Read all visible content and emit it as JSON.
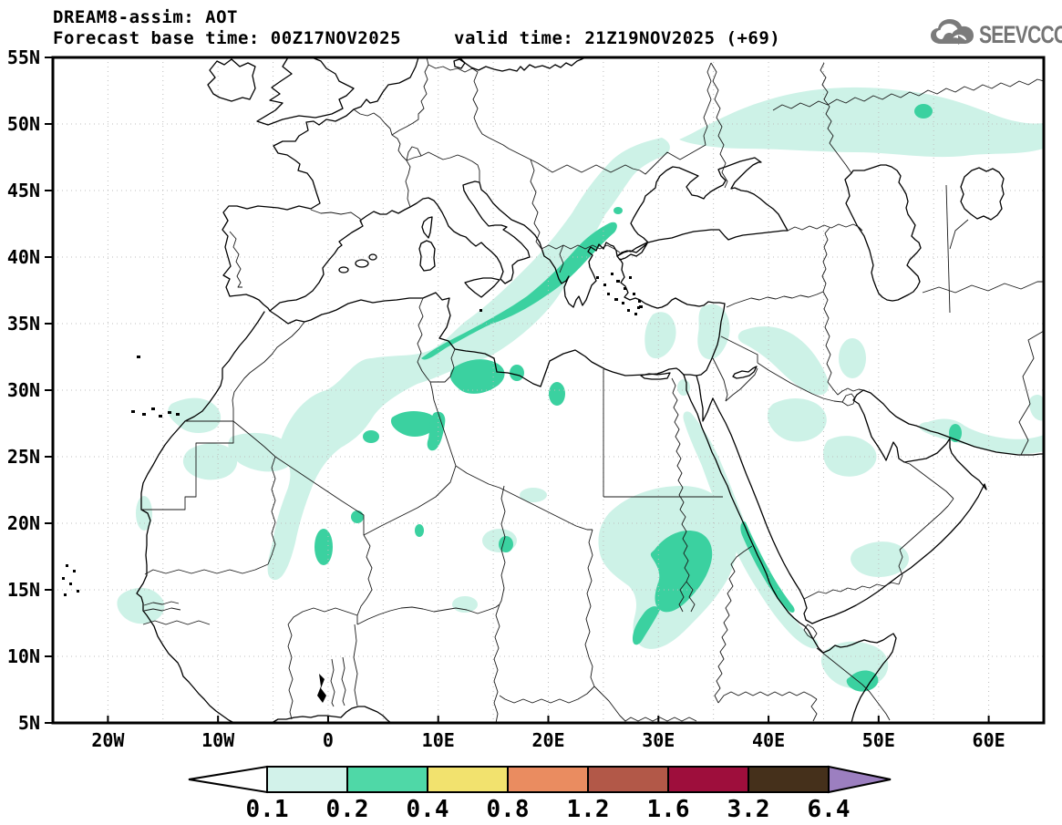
{
  "header": {
    "title": "DREAM8-assim: AOT",
    "forecast_base": "Forecast base time: 00Z17NOV2025",
    "valid_time": "valid time: 21Z19NOV2025 (+69)",
    "logo_text": "SEEVCCC"
  },
  "map": {
    "lat_ticks": [
      {
        "label": "55N",
        "value": 55
      },
      {
        "label": "50N",
        "value": 50
      },
      {
        "label": "45N",
        "value": 45
      },
      {
        "label": "40N",
        "value": 40
      },
      {
        "label": "35N",
        "value": 35
      },
      {
        "label": "30N",
        "value": 30
      },
      {
        "label": "25N",
        "value": 25
      },
      {
        "label": "20N",
        "value": 20
      },
      {
        "label": "15N",
        "value": 15
      },
      {
        "label": "10N",
        "value": 10
      },
      {
        "label": "5N",
        "value": 5
      }
    ],
    "lon_ticks": [
      {
        "label": "20W",
        "value": -20
      },
      {
        "label": "10W",
        "value": -10
      },
      {
        "label": "0",
        "value": 0
      },
      {
        "label": "10E",
        "value": 10
      },
      {
        "label": "20E",
        "value": 20
      },
      {
        "label": "30E",
        "value": 30
      },
      {
        "label": "40E",
        "value": 40
      },
      {
        "label": "50E",
        "value": 50
      },
      {
        "label": "60E",
        "value": 60
      }
    ],
    "domain": {
      "lon_min": -25,
      "lon_max": 65,
      "lat_min": 5,
      "lat_max": 55
    },
    "grid_step_deg": 5,
    "shading_levels": [
      {
        "range": "0.1 - 0.2",
        "color": "#cdf2e7"
      },
      {
        "range": "0.2 - 0.4",
        "color": "#3bd1a0"
      }
    ]
  },
  "colorbar": {
    "levels": [
      "0.1",
      "0.2",
      "0.4",
      "0.8",
      "1.2",
      "1.6",
      "3.2",
      "6.4"
    ],
    "colors": [
      "#ffffff",
      "#d2f2ea",
      "#4fd8a7",
      "#f2e26e",
      "#ea8c60",
      "#b25848",
      "#9e0e3c",
      "#45301b",
      "#9c7fc0"
    ]
  }
}
